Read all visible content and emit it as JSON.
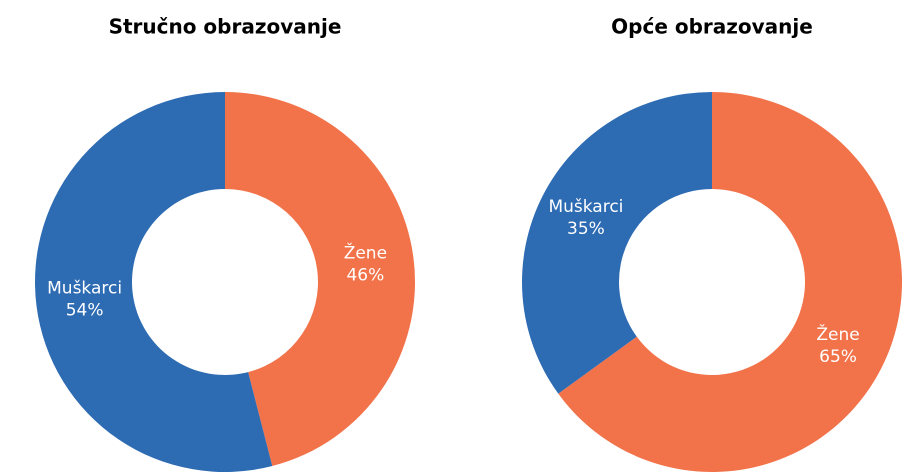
{
  "chart_data": [
    {
      "type": "donut",
      "title": "Stručno obrazovanje",
      "categories": [
        "Žene",
        "Muškarci"
      ],
      "values": [
        46,
        54
      ],
      "value_labels": [
        "46%",
        "54%"
      ],
      "colors": [
        "#f27249",
        "#2d6bb3"
      ]
    },
    {
      "type": "donut",
      "title": "Opće obrazovanje",
      "categories": [
        "Žene",
        "Muškarci"
      ],
      "values": [
        65,
        35
      ],
      "value_labels": [
        "65%",
        "35%"
      ],
      "colors": [
        "#f27249",
        "#2d6bb3"
      ]
    }
  ]
}
